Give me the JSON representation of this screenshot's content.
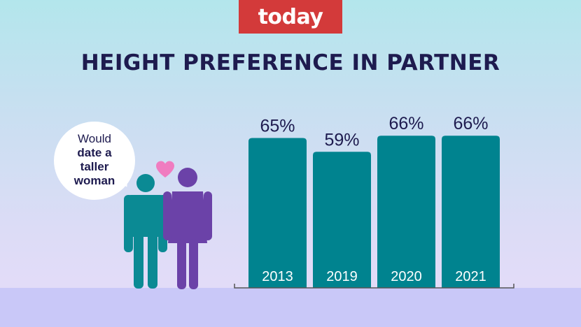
{
  "brand": {
    "logo_text": "today"
  },
  "title": "HEIGHT PREFERENCE IN PARTNER",
  "bubble": {
    "line1": "Would",
    "line2": "date a",
    "line3": "taller",
    "line4": "woman"
  },
  "colors": {
    "bar": "#00838f",
    "title": "#1e1b4f",
    "logo_bg": "#d33a3a",
    "man": "#0b8a94",
    "woman": "#6b42a8",
    "heart": "#f07cc0"
  },
  "icons": [
    "heart-icon",
    "man-icon",
    "woman-icon",
    "speech-bubble-icon"
  ],
  "chart_data": {
    "type": "bar",
    "categories": [
      "2013",
      "2019",
      "2020",
      "2021"
    ],
    "values": [
      65,
      59,
      66,
      66
    ],
    "value_labels": [
      "65%",
      "59%",
      "66%",
      "66%"
    ],
    "title": "HEIGHT PREFERENCE IN PARTNER",
    "xlabel": "",
    "ylabel": "",
    "ylim": [
      0,
      100
    ],
    "grid": false,
    "legend": "none"
  }
}
